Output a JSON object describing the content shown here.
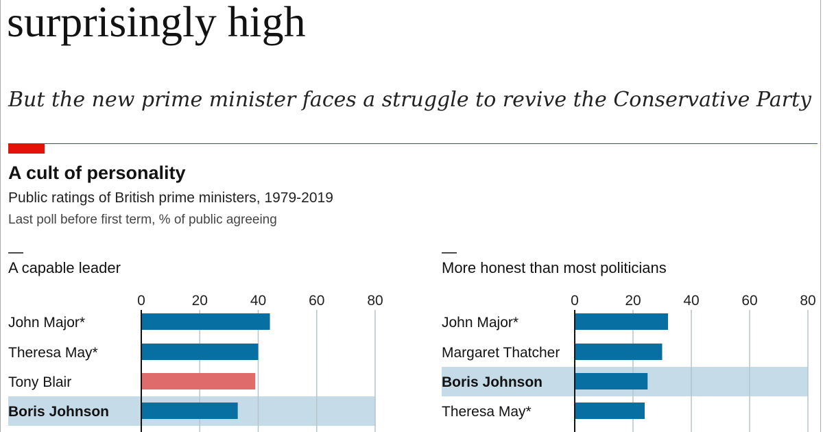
{
  "headline": "surprisingly high",
  "standfirst": "But the new prime minister faces a struggle to revive the Conservative Party",
  "colors": {
    "accent_red": "#e3120b",
    "bar_blue": "#076fa2",
    "bar_red": "#e06b6b",
    "highlight": "#c5dbe8",
    "grid": "#b7c4cc"
  },
  "chart_data": [
    {
      "type": "bar",
      "title": "A cult of personality",
      "subtitle": "Public ratings of British prime ministers, 1979-2019",
      "note": "Last poll before first term, % of public agreeing",
      "panel_title": "A capable leader",
      "xlim": [
        0,
        80
      ],
      "ticks": [
        "0",
        "20",
        "40",
        "60",
        "80"
      ],
      "grid": true,
      "categories": [
        "John Major*",
        "Theresa May*",
        "Tony Blair",
        "Boris Johnson"
      ],
      "values": [
        44,
        40,
        39,
        33
      ],
      "bar_colors": [
        "#076fa2",
        "#076fa2",
        "#e06b6b",
        "#076fa2"
      ],
      "highlighted": "Boris Johnson"
    },
    {
      "type": "bar",
      "panel_title": "More honest than most politicians",
      "xlim": [
        0,
        80
      ],
      "ticks": [
        "0",
        "20",
        "40",
        "60",
        "80"
      ],
      "grid": true,
      "categories": [
        "John Major*",
        "Margaret Thatcher",
        "Boris Johnson",
        "Theresa May*"
      ],
      "values": [
        32,
        30,
        25,
        24
      ],
      "bar_colors": [
        "#076fa2",
        "#076fa2",
        "#076fa2",
        "#076fa2"
      ],
      "highlighted": "Boris Johnson"
    }
  ]
}
